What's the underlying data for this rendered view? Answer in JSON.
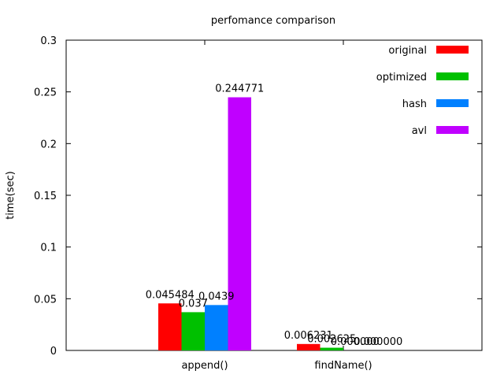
{
  "chart_data": {
    "type": "bar",
    "title": "perfomance comparison",
    "xlabel": "",
    "ylabel": "time(sec)",
    "ylim": [
      0,
      0.3
    ],
    "yticks": [
      0,
      0.05,
      0.1,
      0.15,
      0.2,
      0.25,
      0.3
    ],
    "ytick_labels": [
      "0",
      "0.05",
      "0.1",
      "0.15",
      "0.2",
      "0.25",
      "0.3"
    ],
    "categories": [
      "append()",
      "findName()"
    ],
    "grid": false,
    "legend_position": "top-right",
    "series": [
      {
        "name": "original",
        "color": "#ff0000",
        "values": [
          0.045484,
          0.006231
        ],
        "labels": [
          "0.045484",
          "0.006231"
        ]
      },
      {
        "name": "optimized",
        "color": "#00c000",
        "values": [
          0.037,
          0.002625
        ],
        "labels": [
          "0.037",
          "0.002625"
        ]
      },
      {
        "name": "hash",
        "color": "#0080ff",
        "values": [
          0.0439,
          0.0
        ],
        "labels": [
          "0.0439",
          "0.000000"
        ]
      },
      {
        "name": "avl",
        "color": "#c000ff",
        "values": [
          0.244771,
          0.0
        ],
        "labels": [
          "0.244771",
          "0.000000"
        ]
      }
    ]
  }
}
